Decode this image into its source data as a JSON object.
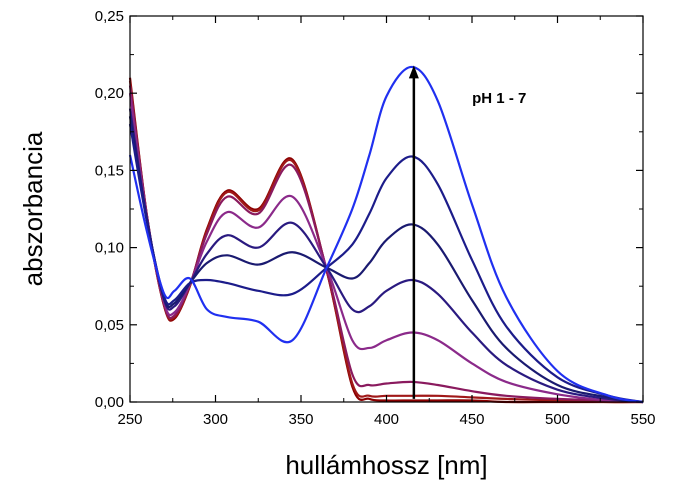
{
  "chart_data": {
    "type": "line",
    "xlabel": "hullámhossz [nm]",
    "ylabel": "abszorbancia",
    "xlim": [
      250,
      550
    ],
    "ylim": [
      0,
      0.25
    ],
    "x_ticks": [
      250,
      300,
      350,
      400,
      450,
      500,
      550
    ],
    "x_tick_labels": [
      "250",
      "300",
      "350",
      "400",
      "450",
      "500",
      "550"
    ],
    "y_ticks": [
      0,
      0.05,
      0.1,
      0.15,
      0.2,
      0.25
    ],
    "y_tick_labels": [
      "0,00",
      "0,05",
      "0,10",
      "0,15",
      "0,20",
      "0,25"
    ],
    "grid": false,
    "annotation": {
      "text": "pH 1 - 7",
      "x": 415,
      "y": 0.197
    },
    "arrow": {
      "x": 416,
      "y_from": 0.002,
      "y_to": 0.218
    },
    "x": [
      250,
      260,
      270,
      276,
      285,
      295,
      307,
      325,
      345,
      365,
      380,
      390,
      400,
      415,
      430,
      450,
      470,
      500,
      530,
      550
    ],
    "series": [
      {
        "color": "#8b0000",
        "values": [
          0.21,
          0.12,
          0.062,
          0.054,
          0.075,
          0.112,
          0.137,
          0.125,
          0.157,
          0.085,
          0.01,
          0.002,
          0.001,
          0.001,
          0.001,
          0.001,
          0.0,
          0.0,
          0.0,
          0.0
        ]
      },
      {
        "color": "#a01818",
        "values": [
          0.208,
          0.12,
          0.062,
          0.055,
          0.075,
          0.111,
          0.136,
          0.124,
          0.156,
          0.085,
          0.012,
          0.004,
          0.004,
          0.004,
          0.004,
          0.003,
          0.002,
          0.001,
          0.0,
          0.0
        ]
      },
      {
        "color": "#8a1a5e",
        "values": [
          0.205,
          0.12,
          0.063,
          0.056,
          0.076,
          0.109,
          0.133,
          0.122,
          0.153,
          0.086,
          0.018,
          0.011,
          0.012,
          0.013,
          0.011,
          0.007,
          0.004,
          0.002,
          0.001,
          0.0
        ]
      },
      {
        "color": "#8b2a8a",
        "values": [
          0.2,
          0.119,
          0.064,
          0.058,
          0.076,
          0.104,
          0.123,
          0.113,
          0.133,
          0.087,
          0.04,
          0.035,
          0.04,
          0.045,
          0.04,
          0.025,
          0.013,
          0.005,
          0.001,
          0.0
        ]
      },
      {
        "color": "#2a1a80",
        "values": [
          0.19,
          0.118,
          0.066,
          0.062,
          0.077,
          0.096,
          0.108,
          0.1,
          0.116,
          0.087,
          0.06,
          0.062,
          0.072,
          0.079,
          0.07,
          0.045,
          0.024,
          0.008,
          0.002,
          0.0
        ]
      },
      {
        "color": "#1a1a70",
        "values": [
          0.185,
          0.117,
          0.067,
          0.064,
          0.077,
          0.09,
          0.095,
          0.089,
          0.097,
          0.087,
          0.08,
          0.09,
          0.105,
          0.115,
          0.102,
          0.066,
          0.035,
          0.011,
          0.003,
          0.0
        ]
      },
      {
        "color": "#1c1c8a",
        "values": [
          0.18,
          0.116,
          0.068,
          0.066,
          0.077,
          0.079,
          0.077,
          0.072,
          0.07,
          0.087,
          0.102,
          0.122,
          0.145,
          0.159,
          0.141,
          0.092,
          0.049,
          0.016,
          0.004,
          0.0
        ]
      },
      {
        "color": "#2030f0",
        "values": [
          0.16,
          0.11,
          0.07,
          0.072,
          0.08,
          0.06,
          0.055,
          0.052,
          0.04,
          0.087,
          0.125,
          0.16,
          0.198,
          0.217,
          0.195,
          0.128,
          0.068,
          0.02,
          0.004,
          0.0
        ]
      }
    ]
  }
}
